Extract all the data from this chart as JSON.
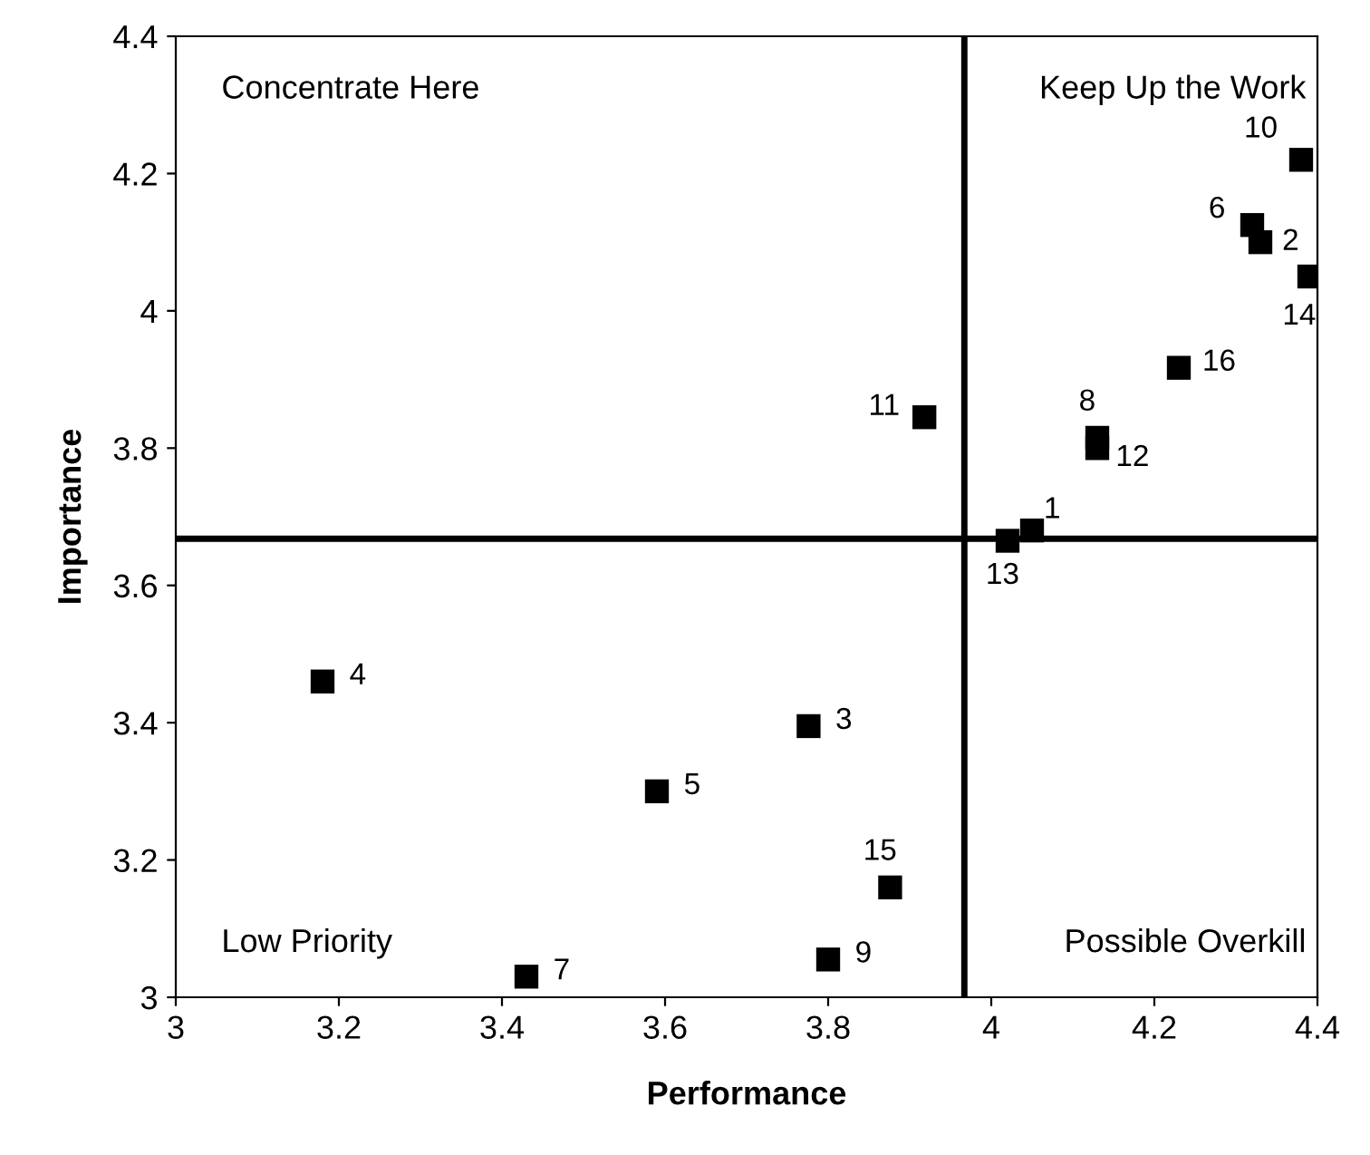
{
  "chart_data": {
    "type": "scatter",
    "xlabel": "Performance",
    "ylabel": "Importance",
    "x": [
      4.05,
      4.33,
      3.776,
      3.18,
      3.59,
      4.32,
      3.43,
      4.13,
      3.8,
      4.38,
      3.918,
      4.13,
      4.02,
      4.39,
      3.876,
      4.23
    ],
    "series": [
      {
        "color": "#000000",
        "values": [
          3.68,
          4.1,
          3.395,
          3.46,
          3.3,
          4.125,
          3.03,
          3.815,
          3.055,
          4.22,
          3.845,
          3.8,
          3.665,
          4.05,
          3.16,
          3.917
        ]
      }
    ],
    "marker": "square",
    "xlim": [
      3,
      4.4
    ],
    "xticks": [
      3,
      3.2,
      3.4,
      3.6,
      3.8,
      4,
      4.2,
      4.4
    ],
    "ylim": [
      3,
      4.4
    ],
    "yticks": [
      3,
      3.2,
      3.4,
      3.6,
      3.8,
      4,
      4.2,
      4.4
    ],
    "ref_lines": [
      {
        "axis": "x",
        "value": 3.967,
        "color": "#000000"
      },
      {
        "axis": "y",
        "value": 3.668,
        "color": "#000000"
      }
    ],
    "annotations": [
      "Concentrate Here",
      "Keep Up the Work",
      "Low Priority",
      "Possible Overkill",
      {
        "text": "1",
        "x": 4.05,
        "y": 3.68
      },
      {
        "text": "2",
        "x": 4.33,
        "y": 4.1
      },
      {
        "text": "3",
        "x": 3.776,
        "y": 3.395
      },
      {
        "text": "4",
        "x": 3.18,
        "y": 3.46
      },
      {
        "text": "5",
        "x": 3.59,
        "y": 3.3
      },
      {
        "text": "6",
        "x": 4.32,
        "y": 4.125
      },
      {
        "text": "7",
        "x": 3.43,
        "y": 3.03
      },
      {
        "text": "8",
        "x": 4.13,
        "y": 3.815
      },
      {
        "text": "9",
        "x": 3.8,
        "y": 3.055
      },
      {
        "text": "10",
        "x": 4.38,
        "y": 4.22
      },
      {
        "text": "11",
        "x": 3.918,
        "y": 3.845
      },
      {
        "text": "12",
        "x": 4.13,
        "y": 3.8
      },
      {
        "text": "13",
        "x": 4.02,
        "y": 3.665
      },
      {
        "text": "14",
        "x": 4.39,
        "y": 4.05
      },
      {
        "text": "15",
        "x": 3.876,
        "y": 3.16
      },
      {
        "text": "16",
        "x": 4.23,
        "y": 3.917
      }
    ]
  }
}
